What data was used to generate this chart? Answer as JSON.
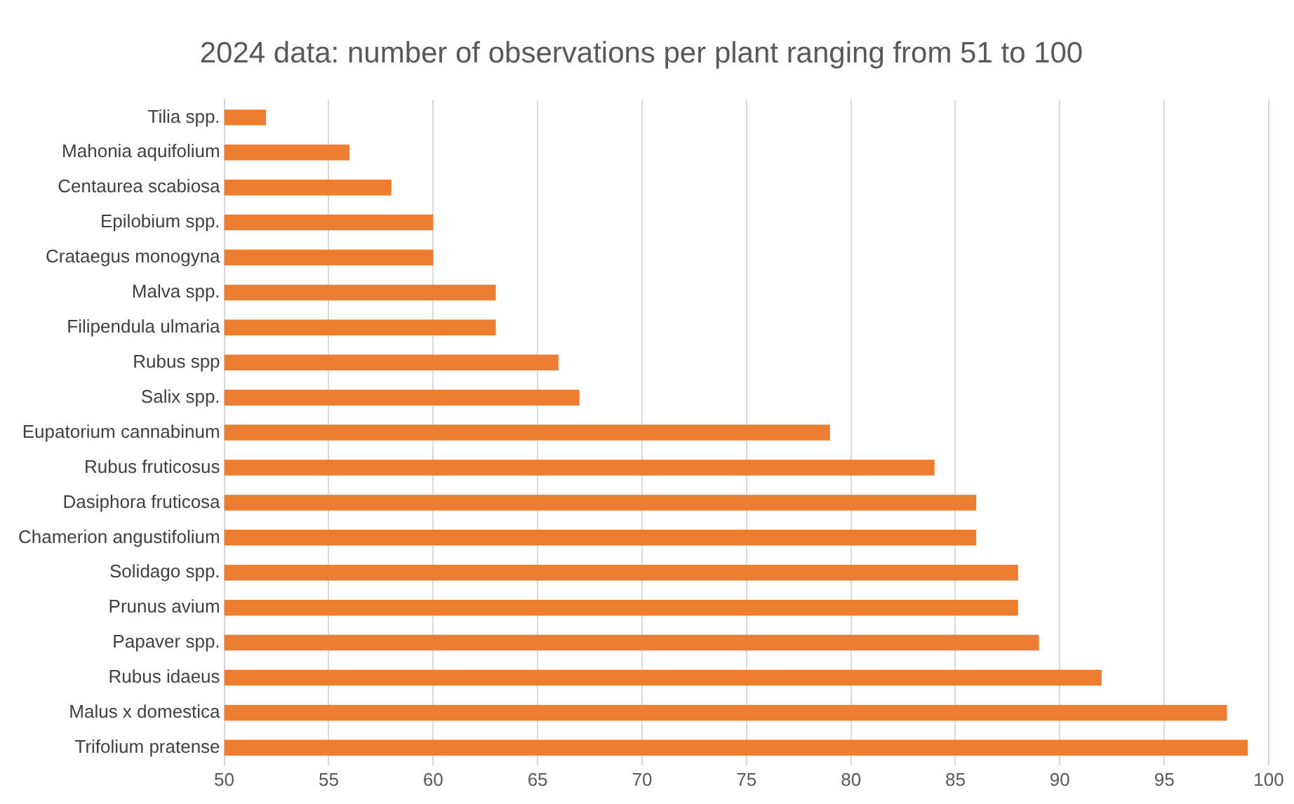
{
  "chart_data": {
    "type": "bar",
    "orientation": "horizontal",
    "title": "2024 data: number of observations per plant ranging from 51 to 100",
    "categories": [
      "Tilia spp.",
      "Mahonia aquifolium",
      "Centaurea scabiosa",
      "Epilobium spp.",
      "Crataegus monogyna",
      "Malva spp.",
      "Filipendula ulmaria",
      "Rubus spp",
      "Salix spp.",
      "Eupatorium cannabinum",
      "Rubus fruticosus",
      "Dasiphora fruticosa",
      "Chamerion angustifolium",
      "Solidago spp.",
      "Prunus avium",
      "Papaver spp.",
      "Rubus idaeus",
      "Malus x domestica",
      "Trifolium pratense"
    ],
    "values": [
      52,
      56,
      58,
      60,
      60,
      63,
      63,
      66,
      67,
      79,
      84,
      86,
      86,
      88,
      88,
      89,
      92,
      98,
      99
    ],
    "color": "#ed7d31",
    "xlim": [
      50,
      100
    ],
    "xticks": [
      50,
      55,
      60,
      65,
      70,
      75,
      80,
      85,
      90,
      95,
      100
    ],
    "grid": "x",
    "legend": false
  }
}
